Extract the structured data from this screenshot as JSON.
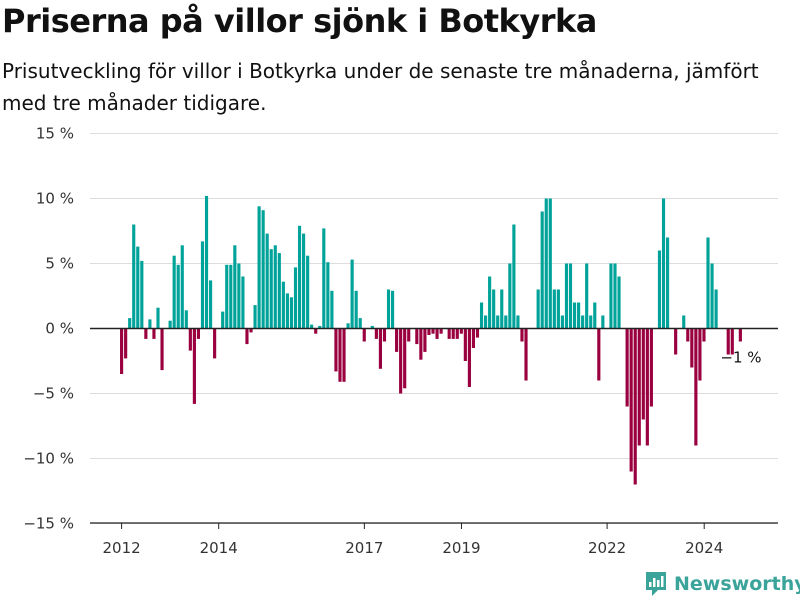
{
  "title": "Priserna på villor sjönk i Botkyrka",
  "subtitle": "Prisutveckling för villor i Botkyrka under de senaste tre månaderna, jämfört med tre månader tidigare.",
  "brand": "Newsworthy",
  "chart_data": {
    "type": "bar",
    "title": "Priserna på villor sjönk i Botkyrka",
    "subtitle": "Prisutveckling för villor i Botkyrka under de senaste tre månaderna, jämfört med tre månader tidigare.",
    "xlabel": "",
    "ylabel": "",
    "ylim": [
      -15,
      15
    ],
    "yticks": [
      -15,
      -10,
      -5,
      0,
      5,
      10,
      15
    ],
    "ytick_labels": [
      "−15 %",
      "−10 %",
      "−5 %",
      "0 %",
      "5 %",
      "10 %",
      "15 %"
    ],
    "xticks": [
      2012,
      2014,
      2017,
      2019,
      2022,
      2024
    ],
    "xlim": [
      2011.5,
      2025.5
    ],
    "start": 2012.0,
    "step": 0.0833,
    "grid": true,
    "legend": "none",
    "colors": {
      "positive": "#00a39a",
      "negative": "#9a003f",
      "zero_line": "#222222",
      "grid": "#dddddd"
    },
    "end_label": "−1 %",
    "values": [
      -3.5,
      -2.3,
      0.8,
      8.0,
      6.3,
      5.2,
      -0.8,
      0.7,
      -0.8,
      1.6,
      -3.2,
      0.0,
      0.6,
      5.6,
      4.9,
      6.4,
      1.4,
      -1.7,
      -5.8,
      -0.8,
      6.7,
      10.2,
      3.7,
      -2.3,
      0.0,
      1.3,
      4.9,
      4.9,
      6.4,
      5.0,
      4.0,
      -1.2,
      -0.3,
      1.8,
      9.4,
      9.1,
      7.3,
      6.1,
      6.4,
      5.8,
      3.6,
      2.7,
      2.4,
      4.7,
      7.9,
      7.3,
      5.6,
      0.3,
      -0.4,
      0.2,
      7.7,
      5.1,
      2.9,
      -3.3,
      -4.1,
      -4.1,
      0.4,
      5.3,
      2.9,
      0.8,
      -1.0,
      0.0,
      0.2,
      -0.8,
      -3.1,
      -1.0,
      3.0,
      2.9,
      -1.8,
      -5.0,
      -4.6,
      -1.0,
      0.0,
      -1.2,
      -2.4,
      -1.8,
      -0.5,
      -0.4,
      -0.8,
      -0.4,
      0.0,
      -0.8,
      -0.8,
      -0.8,
      -0.4,
      -2.5,
      -4.5,
      -1.5,
      -0.7,
      2.0,
      1.0,
      4.0,
      3.0,
      1.0,
      3.0,
      1.0,
      5.0,
      8.0,
      1.0,
      -1.0,
      -4.0,
      0.0,
      0.0,
      3.0,
      9.0,
      10.0,
      10.0,
      3.0,
      3.0,
      1.0,
      5.0,
      5.0,
      2.0,
      2.0,
      1.0,
      5.0,
      1.0,
      2.0,
      -4.0,
      1.0,
      0.0,
      5.0,
      5.0,
      4.0,
      0.0,
      -6.0,
      -11.0,
      -12.0,
      -9.0,
      -7.0,
      -9.0,
      -6.0,
      0.0,
      6.0,
      10.0,
      7.0,
      0.0,
      -2.0,
      0.0,
      1.0,
      -1.0,
      -3.0,
      -9.0,
      -4.0,
      -1.0,
      7.0,
      5.0,
      3.0,
      0.0,
      0.0,
      -2.0,
      -2.0,
      0.0,
      -1.0
    ]
  }
}
